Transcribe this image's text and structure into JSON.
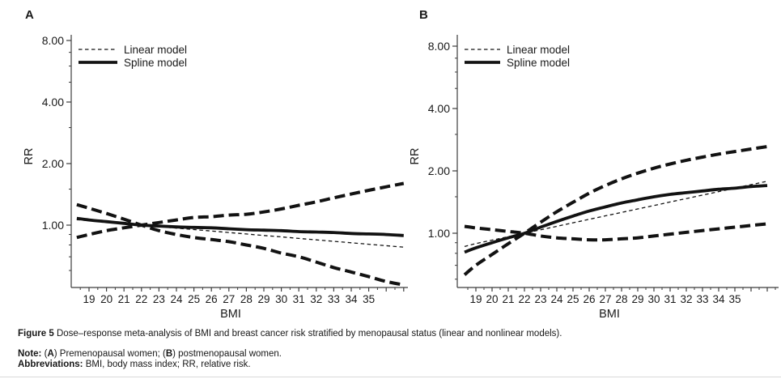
{
  "caption": {
    "lines": [
      {
        "segments": [
          {
            "t": "Figure 5 ",
            "b": true
          },
          {
            "t": "Dose–response meta-analysis of BMI and breast cancer risk stratified by menopausal status (linear and nonlinear models).",
            "b": false
          }
        ]
      },
      {
        "segments": [
          {
            "t": "Note: ",
            "b": true
          },
          {
            "t": "(",
            "b": false
          },
          {
            "t": "A",
            "b": true
          },
          {
            "t": ") Premenopausal women; (",
            "b": false
          },
          {
            "t": "B",
            "b": true
          },
          {
            "t": ") postmenopausal women.",
            "b": false
          }
        ]
      },
      {
        "segments": [
          {
            "t": "Abbreviations: ",
            "b": true
          },
          {
            "t": "BMI, body mass index; RR, relative risk.",
            "b": false
          }
        ]
      }
    ]
  },
  "colors": {
    "line": "#121212",
    "axis": "#3c3c3c",
    "text": "#1a1a1a",
    "divider": "#d9d9d9"
  },
  "chart_data": [
    {
      "panel": "A",
      "type": "line",
      "subtitle": "Premenopausal women",
      "xlabel": "BMI",
      "ylabel": "RR",
      "y_axis_scale": "log2",
      "x_range": [
        18.3,
        37
      ],
      "y_range": [
        0.5,
        8.8
      ],
      "x_tick_labels": [
        19,
        20,
        21,
        22,
        23,
        24,
        25,
        26,
        27,
        28,
        29,
        30,
        31,
        32,
        33,
        34,
        35
      ],
      "y_ticks": [
        {
          "value": 8,
          "label": "8.00"
        },
        {
          "value": 4,
          "label": "4.00"
        },
        {
          "value": 2,
          "label": "2.00"
        },
        {
          "value": 1,
          "label": "1.00"
        }
      ],
      "y_minor_values": [
        7,
        6,
        5,
        3,
        1.5,
        0.9,
        0.8,
        0.7,
        0.6
      ],
      "legend": [
        {
          "label": "Linear model",
          "style": "thin-dashed"
        },
        {
          "label": "Spline model",
          "style": "thick-solid"
        }
      ],
      "x": [
        18.3,
        19,
        20,
        21,
        22,
        23,
        24,
        25,
        26,
        27,
        28,
        29,
        30,
        31,
        32,
        33,
        34,
        35,
        36,
        37
      ],
      "series": [
        {
          "name": "Confidence band (upper left to lower right)",
          "role": "ci-band-descending",
          "style": "thick-dashed",
          "rr": [
            1.26,
            1.21,
            1.14,
            1.07,
            1.0,
            0.94,
            0.9,
            0.87,
            0.85,
            0.83,
            0.8,
            0.77,
            0.73,
            0.7,
            0.66,
            0.62,
            0.59,
            0.56,
            0.53,
            0.51
          ]
        },
        {
          "name": "Confidence band (lower left to upper right)",
          "role": "ci-band-ascending",
          "style": "thick-dashed",
          "rr": [
            0.87,
            0.9,
            0.94,
            0.97,
            1.0,
            1.03,
            1.06,
            1.09,
            1.1,
            1.12,
            1.13,
            1.16,
            1.2,
            1.25,
            1.3,
            1.36,
            1.42,
            1.48,
            1.54,
            1.6
          ]
        },
        {
          "name": "Spline model",
          "role": "spline-model",
          "style": "thick-solid",
          "rr": [
            1.08,
            1.06,
            1.04,
            1.02,
            1.0,
            0.99,
            0.98,
            0.975,
            0.97,
            0.96,
            0.95,
            0.945,
            0.94,
            0.93,
            0.925,
            0.92,
            0.91,
            0.905,
            0.9,
            0.89
          ]
        },
        {
          "name": "Linear model",
          "role": "linear-model",
          "style": "thin-dashed",
          "rr": [
            1.063,
            1.051,
            1.034,
            1.017,
            1.0,
            0.984,
            0.967,
            0.951,
            0.936,
            0.92,
            0.905,
            0.89,
            0.876,
            0.861,
            0.847,
            0.833,
            0.82,
            0.806,
            0.793,
            0.78
          ]
        }
      ]
    },
    {
      "panel": "B",
      "type": "line",
      "subtitle": "Postmenopausal women",
      "xlabel": "BMI",
      "ylabel": "RR",
      "y_axis_scale": "log2",
      "x_range": [
        18.3,
        37
      ],
      "y_range": [
        0.55,
        8.8
      ],
      "x_tick_labels": [
        19,
        20,
        21,
        22,
        23,
        24,
        25,
        26,
        27,
        28,
        29,
        30,
        31,
        32,
        33,
        34,
        35
      ],
      "y_ticks": [
        {
          "value": 8,
          "label": "8.00"
        },
        {
          "value": 4,
          "label": "4.00"
        },
        {
          "value": 2,
          "label": "2.00"
        },
        {
          "value": 1,
          "label": "1.00"
        }
      ],
      "y_minor_values": [
        7,
        6,
        5,
        3,
        1.5,
        0.9,
        0.8,
        0.7,
        0.6
      ],
      "legend": [
        {
          "label": "Linear model",
          "style": "thin-dashed"
        },
        {
          "label": "Spline model",
          "style": "thick-solid"
        }
      ],
      "x": [
        18.3,
        19,
        20,
        21,
        22,
        23,
        24,
        25,
        26,
        27,
        28,
        29,
        30,
        31,
        32,
        33,
        34,
        35,
        36,
        37
      ],
      "series": [
        {
          "name": "Confidence band (lower left to upper right)",
          "role": "ci-band-ascending",
          "style": "thick-dashed",
          "rr": [
            0.63,
            0.7,
            0.79,
            0.89,
            1.0,
            1.13,
            1.27,
            1.41,
            1.56,
            1.7,
            1.83,
            1.95,
            2.06,
            2.16,
            2.25,
            2.33,
            2.41,
            2.48,
            2.55,
            2.62
          ]
        },
        {
          "name": "Confidence band (upper left to lower right)",
          "role": "ci-band-descending",
          "style": "thick-dashed",
          "rr": [
            1.08,
            1.06,
            1.04,
            1.02,
            1.0,
            0.97,
            0.95,
            0.94,
            0.93,
            0.93,
            0.94,
            0.95,
            0.97,
            0.99,
            1.01,
            1.03,
            1.05,
            1.07,
            1.09,
            1.11
          ]
        },
        {
          "name": "Spline model",
          "role": "spline-model",
          "style": "thick-solid",
          "rr": [
            0.81,
            0.85,
            0.9,
            0.95,
            1.0,
            1.07,
            1.14,
            1.21,
            1.28,
            1.34,
            1.4,
            1.45,
            1.5,
            1.54,
            1.57,
            1.6,
            1.63,
            1.65,
            1.68,
            1.7
          ]
        },
        {
          "name": "Linear model",
          "role": "linear-model",
          "style": "thin-dashed",
          "rr": [
            0.863,
            0.891,
            0.926,
            0.962,
            1.0,
            1.039,
            1.08,
            1.123,
            1.167,
            1.213,
            1.26,
            1.31,
            1.361,
            1.415,
            1.47,
            1.528,
            1.588,
            1.651,
            1.716,
            1.783
          ]
        }
      ]
    }
  ]
}
